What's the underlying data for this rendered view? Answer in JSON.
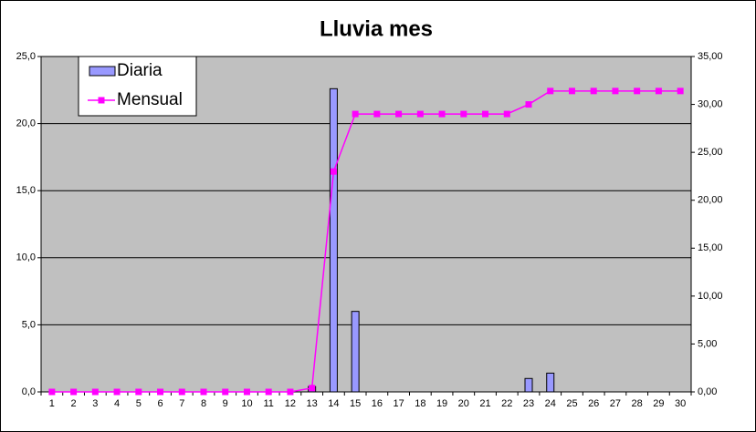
{
  "chart_data": {
    "type": "bar-line",
    "title": "Lluvia mes",
    "categories": [
      1,
      2,
      3,
      4,
      5,
      6,
      7,
      8,
      9,
      10,
      11,
      12,
      13,
      14,
      15,
      16,
      17,
      18,
      19,
      20,
      21,
      22,
      23,
      24,
      25,
      26,
      27,
      28,
      29,
      30
    ],
    "series": [
      {
        "name": "Diaria",
        "type": "bar",
        "color": "#9999ff",
        "axis": "y",
        "values": [
          0,
          0,
          0,
          0,
          0,
          0,
          0,
          0,
          0,
          0,
          0,
          0,
          0.4,
          22.6,
          6.0,
          0,
          0,
          0,
          0,
          0,
          0,
          0,
          1.0,
          1.4,
          0,
          0,
          0,
          0,
          0,
          0
        ]
      },
      {
        "name": "Mensual",
        "type": "line",
        "color": "#ff00ff",
        "axis": "y2",
        "values": [
          0,
          0,
          0,
          0,
          0,
          0,
          0,
          0,
          0,
          0,
          0,
          0,
          0.4,
          23.0,
          29.0,
          29.0,
          29.0,
          29.0,
          29.0,
          29.0,
          29.0,
          29.0,
          30.0,
          31.4,
          31.4,
          31.4,
          31.4,
          31.4,
          31.4,
          31.4
        ]
      }
    ],
    "ylim": [
      0,
      25
    ],
    "yticks": [
      {
        "value": 0,
        "label": "0,0"
      },
      {
        "value": 5,
        "label": "5,0"
      },
      {
        "value": 10,
        "label": "10,0"
      },
      {
        "value": 15,
        "label": "15,0"
      },
      {
        "value": 20,
        "label": "20,0"
      },
      {
        "value": 25,
        "label": "25,0"
      }
    ],
    "y2lim": [
      0,
      35
    ],
    "y2ticks": [
      {
        "value": 0,
        "label": "0,00"
      },
      {
        "value": 5,
        "label": "5,00"
      },
      {
        "value": 10,
        "label": "10,00"
      },
      {
        "value": 15,
        "label": "15,00"
      },
      {
        "value": 20,
        "label": "20,00"
      },
      {
        "value": 25,
        "label": "25,00"
      },
      {
        "value": 30,
        "label": "30,00"
      },
      {
        "value": 35,
        "label": "35,00"
      }
    ],
    "grid": true,
    "legend": "upper-left",
    "background": "#c0c0c0"
  }
}
